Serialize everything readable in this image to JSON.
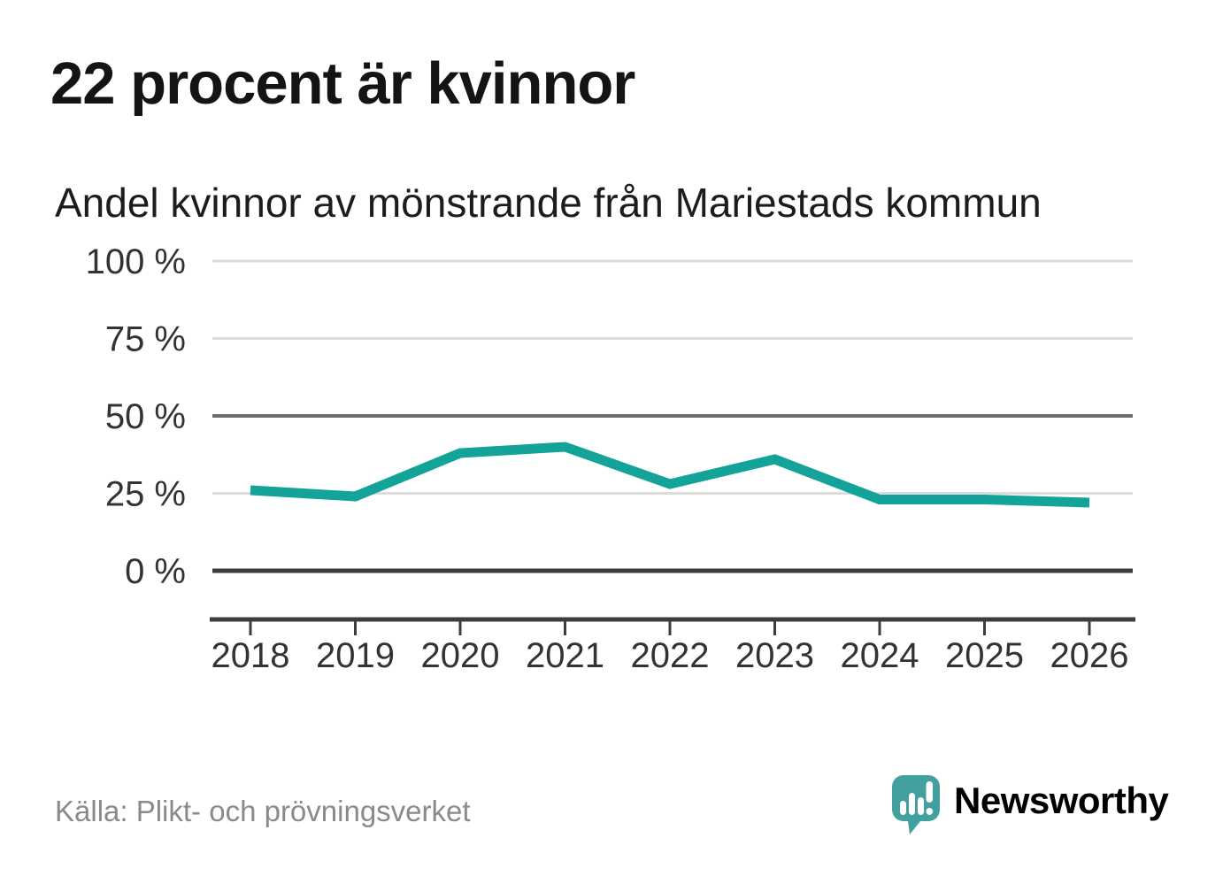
{
  "header": {
    "title": "22 procent är kvinnor",
    "subtitle": "Andel kvinnor av mönstrande från Mariestads kommun"
  },
  "chart_data": {
    "type": "line",
    "x": [
      "2018",
      "2019",
      "2020",
      "2021",
      "2022",
      "2023",
      "2024",
      "2025",
      "2026"
    ],
    "series": [
      {
        "name": "Andel kvinnor av mönstrande",
        "values": [
          26,
          24,
          38,
          40,
          28,
          36,
          23,
          23,
          22
        ]
      }
    ],
    "unit": "%",
    "title": "22 procent är kvinnor",
    "subtitle": "Andel kvinnor av mönstrande från Mariestads kommun",
    "xlabel": "",
    "ylabel": "",
    "ylim": [
      0,
      100
    ],
    "yticks": [
      0,
      25,
      50,
      75,
      100
    ],
    "ytick_labels": [
      "0 %",
      "25 %",
      "50 %",
      "75 %",
      "100 %"
    ],
    "grid": true,
    "emphasized_gridline": 50,
    "baseline_gridline": 0,
    "legend_position": "none",
    "line_color": "#14a399"
  },
  "footer": {
    "source": "Källa: Plikt- och prövningsverket",
    "brand": "Newsworthy"
  },
  "icons": {
    "logo": "newsworthy-speech-bubble-barchart-icon"
  },
  "colors": {
    "line": "#14a399",
    "grid_light": "#dcdcdc",
    "grid_emphasis": "#6e6e6e",
    "grid_baseline": "#3d3d3d",
    "axis": "#3d3d3d",
    "label": "#333333",
    "title": "#141414",
    "muted": "#8a8a8a",
    "brand_teal": "#42a09e"
  }
}
